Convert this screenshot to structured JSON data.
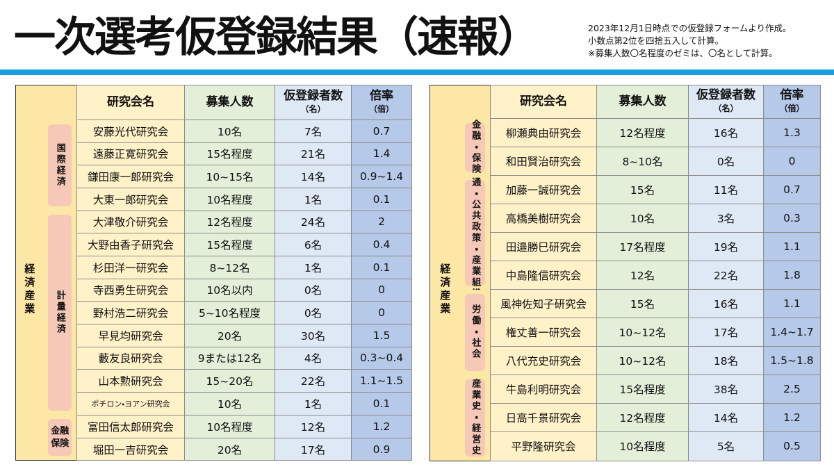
{
  "header": {
    "title": "一次選考仮登録結果（速報）",
    "notes": [
      "2023年12月1日時点での仮登録フォームより作成。",
      "小数点第2位を四捨五入して計算。",
      "※募集人数〇名程度のゼミは、〇名として計算。"
    ]
  },
  "tables": [
    {
      "headers": [
        {
          "text": "研究会名"
        },
        {
          "text": "募集人数"
        },
        {
          "text": "仮登録者数",
          "unit": "（名）"
        },
        {
          "text": "倍率",
          "unit": "（倍）"
        }
      ],
      "outer_group": "経済産業",
      "groups": [
        {
          "label": "国際経済",
          "rows": [
            [
              "安藤光代研究会",
              "10名",
              "7名",
              "0.7"
            ],
            [
              "遠藤正寛研究会",
              "15名程度",
              "21名",
              "1.4"
            ],
            [
              "鎌田康一郎研究会",
              "10~15名",
              "14名",
              "0.9~1.4"
            ],
            [
              "大東一郎研究会",
              "10名程度",
              "1名",
              "0.1"
            ]
          ]
        },
        {
          "label": "計量経済",
          "rows": [
            [
              "大津敬介研究会",
              "12名程度",
              "24名",
              "2"
            ],
            [
              "大野由香子研究会",
              "15名程度",
              "6名",
              "0.4"
            ],
            [
              "杉田洋一研究会",
              "8~12名",
              "1名",
              "0.1"
            ],
            [
              "寺西勇生研究会",
              "10名以内",
              "0名",
              "0"
            ],
            [
              "野村浩二研究会",
              "5~10名程度",
              "0名",
              "0"
            ],
            [
              "早見均研究会",
              "20名",
              "30名",
              "1.5"
            ],
            [
              "藪友良研究会",
              "9または12名",
              "4名",
              "0.3~0.4"
            ],
            [
              "山本勲研究会",
              "15~20名",
              "22名",
              "1.1~1.5"
            ],
            [
              "ポチロン・ヨアン研究会",
              "10名",
              "1名",
              "0.1"
            ]
          ]
        },
        {
          "label": "金融保険",
          "rows": [
            [
              "富田信太郎研究会",
              "10名程度",
              "12名",
              "1.2"
            ],
            [
              "堀田一吉研究会",
              "20名",
              "17名",
              "0.9"
            ]
          ]
        }
      ]
    },
    {
      "headers": [
        {
          "text": "研究会名"
        },
        {
          "text": "募集人数"
        },
        {
          "text": "仮登録者数",
          "unit": "（名）"
        },
        {
          "text": "倍率",
          "unit": "（倍）"
        }
      ],
      "outer_group": "経済産業",
      "groups": [
        {
          "label": "金融・保険",
          "rows": [
            [
              "柳瀬典由研究会",
              "12名程度",
              "16名",
              "1.3"
            ],
            [
              "和田賢治研究会",
              "8~10名",
              "0名",
              "0"
            ]
          ]
        },
        {
          "label": "交通・公共政策・産業組織",
          "rows": [
            [
              "加藤一誠研究会",
              "15名",
              "11名",
              "0.7"
            ],
            [
              "高橋美樹研究会",
              "10名",
              "3名",
              "0.3"
            ],
            [
              "田邉勝巳研究会",
              "17名程度",
              "19名",
              "1.1"
            ],
            [
              "中島隆信研究会",
              "12名",
              "22名",
              "1.8"
            ]
          ]
        },
        {
          "label": "労働・社会",
          "rows": [
            [
              "風神佐知子研究会",
              "15名",
              "16名",
              "1.1"
            ],
            [
              "権丈善一研究会",
              "10~12名",
              "17名",
              "1.4~1.7"
            ],
            [
              "八代充史研究会",
              "10~12名",
              "18名",
              "1.5~1.8"
            ]
          ]
        },
        {
          "label": "産業史・経営史",
          "rows": [
            [
              "牛島利明研究会",
              "15名程度",
              "38名",
              "2.5"
            ],
            [
              "日高千景研究会",
              "12名程度",
              "14名",
              "1.2"
            ],
            [
              "平野隆研究会",
              "10名程度",
              "5名",
              "0.5"
            ]
          ]
        }
      ]
    }
  ]
}
